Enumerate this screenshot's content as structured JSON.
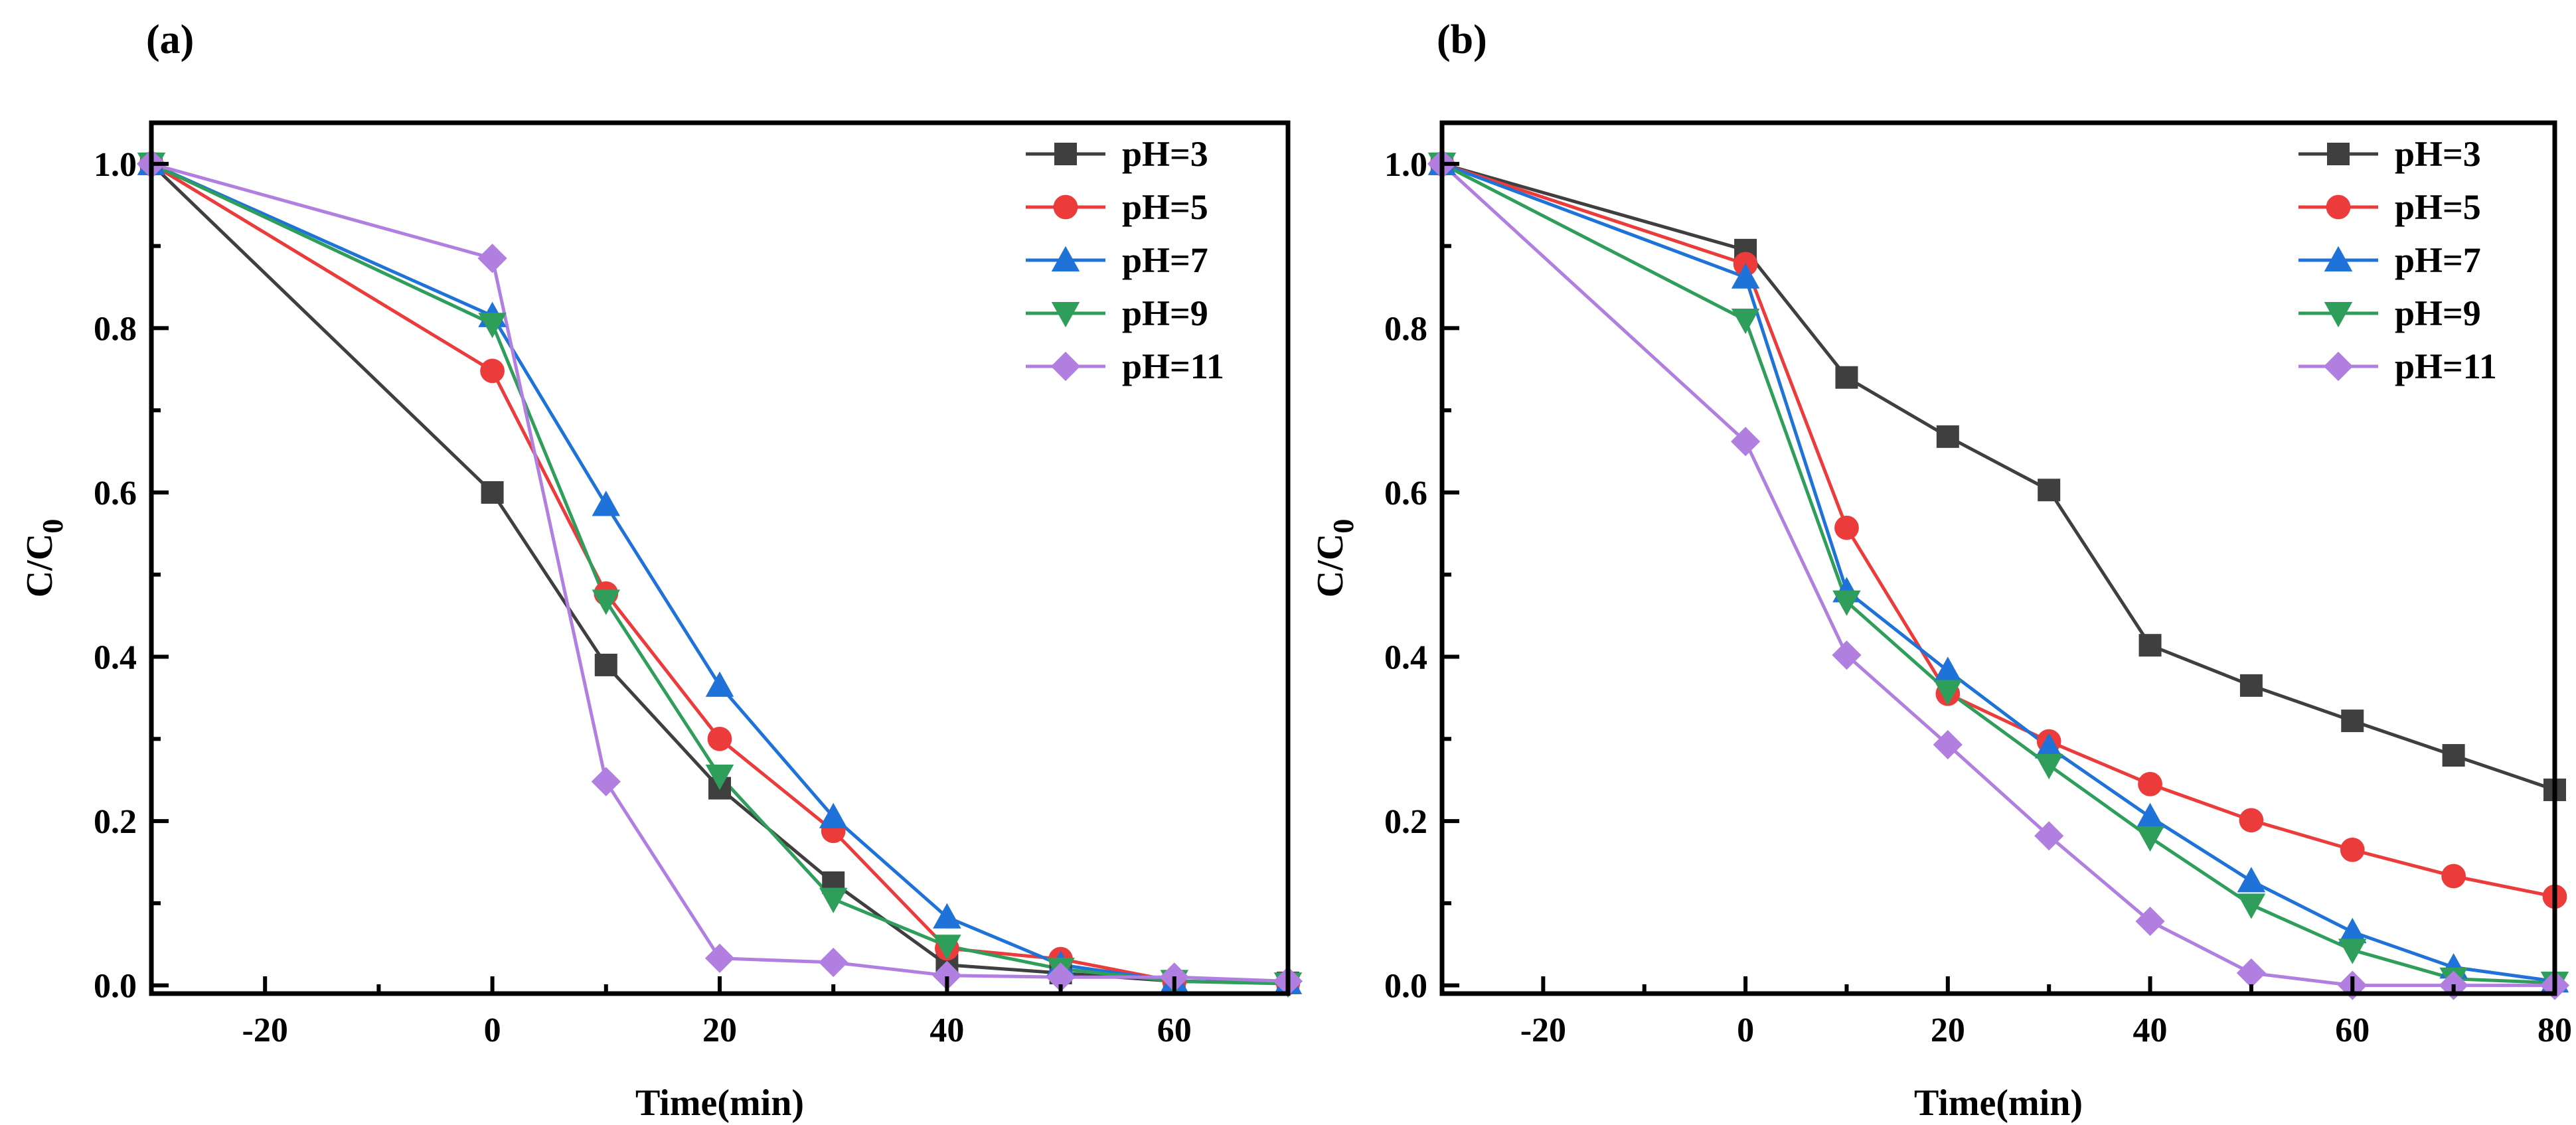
{
  "chart_data": [
    {
      "type": "line",
      "panel_label": "(a)",
      "xlabel": "Time(min)",
      "ylabel": "C/C",
      "ylabel_sub": "0",
      "xlim": [
        -30,
        70
      ],
      "ylim": [
        -0.01,
        1.05
      ],
      "xticks": [
        -20,
        0,
        20,
        40,
        60
      ],
      "xtick_labels": [
        "-20",
        "0",
        "20",
        "40",
        "60"
      ],
      "yticks": [
        0.0,
        0.2,
        0.4,
        0.6,
        0.8,
        1.0
      ],
      "ytick_labels": [
        "0.0",
        "0.2",
        "0.4",
        "0.6",
        "0.8",
        "1.0"
      ],
      "legend_position": "top-right",
      "series": [
        {
          "name": "pH=3",
          "color": "#3f3f3f",
          "marker": "square",
          "x": [
            -30,
            0,
            10,
            20,
            30,
            40,
            50,
            60,
            70
          ],
          "y": [
            1.0,
            0.6,
            0.39,
            0.24,
            0.125,
            0.025,
            0.015,
            0.005,
            0.003
          ]
        },
        {
          "name": "pH=5",
          "color": "#ec3b3b",
          "marker": "circle",
          "x": [
            -30,
            0,
            10,
            20,
            30,
            40,
            50,
            60,
            70
          ],
          "y": [
            1.0,
            0.748,
            0.477,
            0.3,
            0.188,
            0.045,
            0.032,
            0.005,
            0.003
          ]
        },
        {
          "name": "pH=7",
          "color": "#1f73d8",
          "marker": "triangle-up",
          "x": [
            -30,
            0,
            10,
            20,
            30,
            40,
            50,
            60,
            70
          ],
          "y": [
            1.0,
            0.815,
            0.585,
            0.365,
            0.205,
            0.083,
            0.025,
            0.005,
            0.003
          ]
        },
        {
          "name": "pH=9",
          "color": "#2f9e5b",
          "marker": "triangle-down",
          "x": [
            -30,
            0,
            10,
            20,
            30,
            40,
            50,
            60,
            70
          ],
          "y": [
            1.0,
            0.805,
            0.468,
            0.255,
            0.105,
            0.048,
            0.02,
            0.005,
            0.002
          ]
        },
        {
          "name": "pH=11",
          "color": "#b07fe0",
          "marker": "diamond",
          "x": [
            -30,
            0,
            10,
            20,
            30,
            40,
            50,
            60,
            70
          ],
          "y": [
            1.0,
            0.885,
            0.248,
            0.033,
            0.028,
            0.012,
            0.01,
            0.01,
            0.005
          ]
        }
      ]
    },
    {
      "type": "line",
      "panel_label": "(b)",
      "xlabel": "Time(min)",
      "ylabel": "C/C",
      "ylabel_sub": "0",
      "xlim": [
        -30,
        80
      ],
      "ylim": [
        -0.01,
        1.05
      ],
      "xticks": [
        -20,
        0,
        20,
        40,
        60,
        80
      ],
      "xtick_labels": [
        "-20",
        "0",
        "20",
        "40",
        "60",
        "80"
      ],
      "yticks": [
        0.0,
        0.2,
        0.4,
        0.6,
        0.8,
        1.0
      ],
      "ytick_labels": [
        "0.0",
        "0.2",
        "0.4",
        "0.6",
        "0.8",
        "1.0"
      ],
      "legend_position": "top-right",
      "series": [
        {
          "name": "pH=3",
          "color": "#3f3f3f",
          "marker": "square",
          "x": [
            -30,
            0,
            10,
            20,
            30,
            40,
            50,
            60,
            70,
            80
          ],
          "y": [
            1.0,
            0.895,
            0.74,
            0.668,
            0.603,
            0.414,
            0.365,
            0.322,
            0.28,
            0.238
          ]
        },
        {
          "name": "pH=5",
          "color": "#ec3b3b",
          "marker": "circle",
          "x": [
            -30,
            0,
            10,
            20,
            30,
            40,
            50,
            60,
            70,
            80
          ],
          "y": [
            1.0,
            0.878,
            0.557,
            0.355,
            0.297,
            0.245,
            0.201,
            0.165,
            0.133,
            0.108
          ]
        },
        {
          "name": "pH=7",
          "color": "#1f73d8",
          "marker": "triangle-up",
          "x": [
            -30,
            0,
            10,
            20,
            30,
            40,
            50,
            60,
            70,
            80
          ],
          "y": [
            1.0,
            0.862,
            0.48,
            0.383,
            0.29,
            0.205,
            0.127,
            0.065,
            0.022,
            0.005
          ]
        },
        {
          "name": "pH=9",
          "color": "#2f9e5b",
          "marker": "triangle-down",
          "x": [
            -30,
            0,
            10,
            20,
            30,
            40,
            50,
            60,
            70,
            80
          ],
          "y": [
            1.0,
            0.81,
            0.467,
            0.358,
            0.268,
            0.18,
            0.098,
            0.043,
            0.008,
            0.003
          ]
        },
        {
          "name": "pH=11",
          "color": "#b07fe0",
          "marker": "diamond",
          "x": [
            -30,
            0,
            10,
            20,
            30,
            40,
            50,
            60,
            70,
            80
          ],
          "y": [
            1.0,
            0.662,
            0.402,
            0.293,
            0.182,
            0.078,
            0.015,
            0.0,
            0.0,
            0.0
          ]
        }
      ]
    }
  ]
}
